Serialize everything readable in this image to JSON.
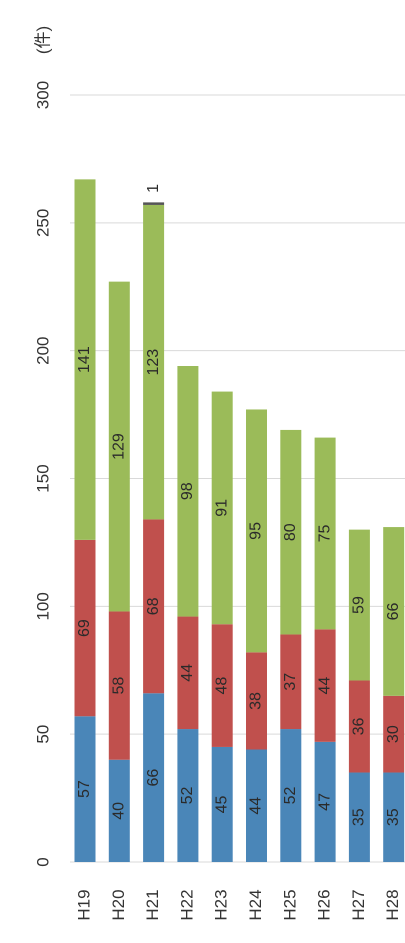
{
  "chart_data": {
    "type": "stacked_bar",
    "unit_label": "(件)",
    "categories": [
      "H19",
      "H20",
      "H21",
      "H22",
      "H23",
      "H24",
      "H25",
      "H26",
      "H27",
      "H28"
    ],
    "series": [
      {
        "name": null,
        "color": "#4a86b8",
        "values": [
          57,
          40,
          66,
          52,
          45,
          44,
          52,
          47,
          35,
          35
        ]
      },
      {
        "name": null,
        "color": "#c0504d",
        "values": [
          69,
          58,
          68,
          44,
          48,
          38,
          37,
          44,
          36,
          30
        ]
      },
      {
        "name": null,
        "color": "#9bbb59",
        "values": [
          141,
          129,
          123,
          98,
          91,
          95,
          80,
          75,
          59,
          66
        ]
      },
      {
        "name": null,
        "color": "#555555",
        "values": [
          null,
          null,
          1,
          null,
          null,
          null,
          null,
          null,
          null,
          null
        ]
      }
    ],
    "ylim": [
      0,
      300
    ],
    "yticks": [
      0,
      50,
      100,
      150,
      200,
      250,
      300
    ],
    "grid": true
  }
}
